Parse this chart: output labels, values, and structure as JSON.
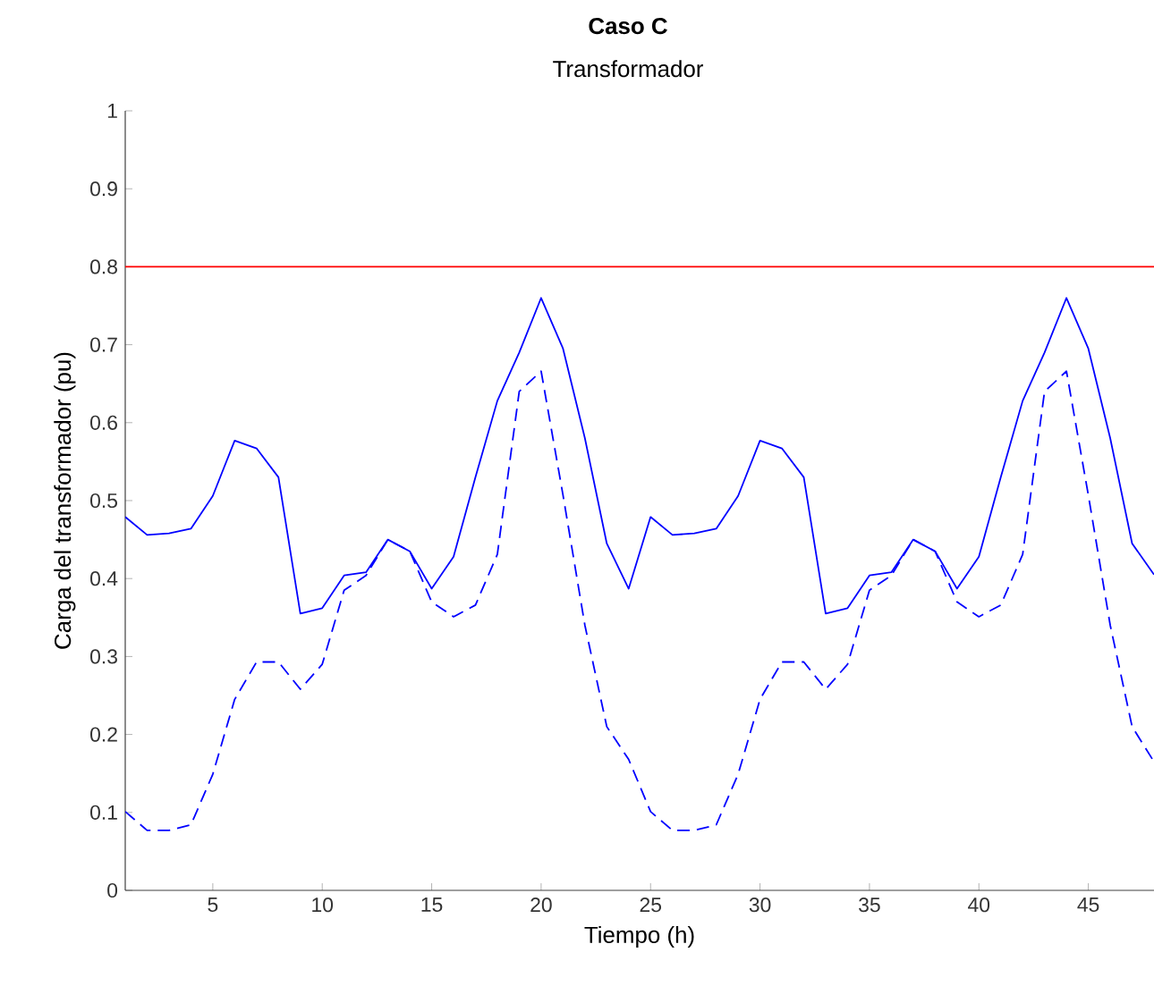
{
  "chart_data": {
    "type": "line",
    "title": "**Caso C**",
    "subtitle": "Transformador",
    "xlabel": "Tiempo (h)",
    "ylabel": "Carga del transformador (pu)",
    "x": [
      1,
      2,
      3,
      4,
      5,
      6,
      7,
      8,
      9,
      10,
      11,
      12,
      13,
      14,
      15,
      16,
      17,
      18,
      19,
      20,
      21,
      22,
      23,
      24,
      25,
      26,
      27,
      28,
      29,
      30,
      31,
      32,
      33,
      34,
      35,
      36,
      37,
      38,
      39,
      40,
      41,
      42,
      43,
      44,
      45,
      46,
      47,
      48
    ],
    "series": [
      {
        "color": "#0000ff",
        "line_style": "solid",
        "values": [
          0.479,
          0.456,
          0.458,
          0.464,
          0.506,
          0.577,
          0.567,
          0.53,
          0.355,
          0.362,
          0.404,
          0.408,
          0.45,
          0.435,
          0.387,
          0.428,
          0.53,
          0.628,
          0.69,
          0.76,
          0.695,
          0.58,
          0.445,
          0.387,
          0.479,
          0.456,
          0.458,
          0.464,
          0.506,
          0.577,
          0.567,
          0.53,
          0.355,
          0.362,
          0.404,
          0.408,
          0.45,
          0.435,
          0.387,
          0.428,
          0.53,
          0.628,
          0.69,
          0.76,
          0.695,
          0.58,
          0.445,
          0.405
        ]
      },
      {
        "color": "#0000ff",
        "line_style": "dashed",
        "values": [
          0.101,
          0.077,
          0.077,
          0.084,
          0.149,
          0.245,
          0.293,
          0.293,
          0.258,
          0.29,
          0.385,
          0.404,
          0.45,
          0.435,
          0.37,
          0.351,
          0.366,
          0.431,
          0.64,
          0.666,
          0.507,
          0.34,
          0.21,
          0.168,
          0.101,
          0.077,
          0.077,
          0.084,
          0.149,
          0.245,
          0.293,
          0.293,
          0.258,
          0.29,
          0.385,
          0.404,
          0.45,
          0.435,
          0.37,
          0.351,
          0.366,
          0.431,
          0.64,
          0.666,
          0.507,
          0.34,
          0.21,
          0.165
        ]
      }
    ],
    "ref_lines": [
      {
        "axis": "y",
        "value": 0.8,
        "color": "#ff0000",
        "line_style": "solid"
      }
    ],
    "xlim": [
      1,
      48
    ],
    "ylim": [
      0,
      1
    ],
    "xticks": [
      5,
      10,
      15,
      20,
      25,
      30,
      35,
      40,
      45
    ],
    "yticks": [
      0,
      0.1,
      0.2,
      0.3,
      0.4,
      0.5,
      0.6,
      0.7,
      0.8,
      0.9,
      1
    ]
  }
}
